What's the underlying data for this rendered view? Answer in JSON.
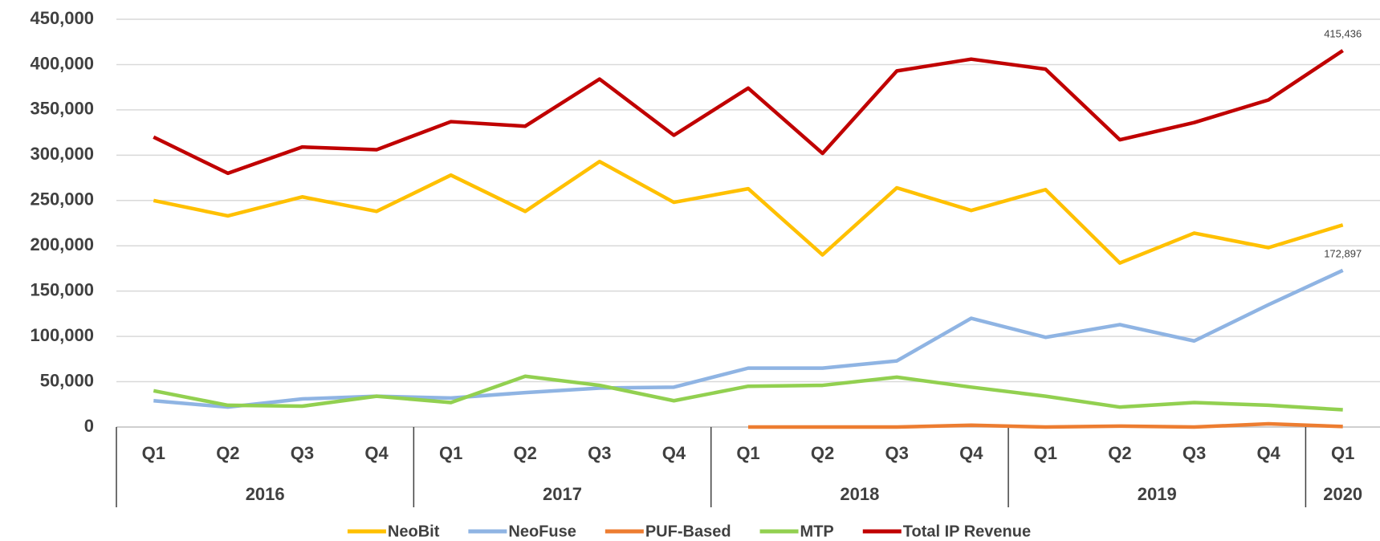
{
  "chart_data": {
    "type": "line",
    "groups": [
      {
        "label": "2016",
        "quarters": [
          "Q1",
          "Q2",
          "Q3",
          "Q4"
        ]
      },
      {
        "label": "2017",
        "quarters": [
          "Q1",
          "Q2",
          "Q3",
          "Q4"
        ]
      },
      {
        "label": "2018",
        "quarters": [
          "Q1",
          "Q2",
          "Q3",
          "Q4"
        ]
      },
      {
        "label": "2019",
        "quarters": [
          "Q1",
          "Q2",
          "Q3",
          "Q4"
        ]
      },
      {
        "label": "2020",
        "quarters": [
          "Q1"
        ]
      }
    ],
    "series": [
      {
        "name": "NeoBit",
        "color": "#FFC000",
        "values": [
          250000,
          233000,
          254000,
          238000,
          278000,
          238000,
          293000,
          248000,
          263000,
          190000,
          264000,
          239000,
          262000,
          181000,
          214000,
          198000,
          223000
        ]
      },
      {
        "name": "NeoFuse",
        "color": "#8FB4E3",
        "values": [
          29000,
          22000,
          31000,
          34000,
          32000,
          38000,
          43000,
          44000,
          65000,
          65000,
          73000,
          120000,
          99000,
          113000,
          95000,
          135000,
          172897
        ],
        "value_labels": [
          null,
          null,
          null,
          null,
          null,
          null,
          null,
          null,
          null,
          null,
          null,
          null,
          null,
          null,
          null,
          null,
          "172,897"
        ]
      },
      {
        "name": "PUF-Based",
        "color": "#ED7D31",
        "values": [
          null,
          null,
          null,
          null,
          null,
          null,
          null,
          null,
          0,
          0,
          0,
          2000,
          0,
          1000,
          0,
          3500,
          500
        ]
      },
      {
        "name": "MTP",
        "color": "#92D050",
        "values": [
          40000,
          24000,
          23000,
          34000,
          27000,
          56000,
          46000,
          29000,
          45000,
          46000,
          55000,
          44000,
          34000,
          22000,
          27000,
          24000,
          19000
        ]
      },
      {
        "name": "Total IP Revenue",
        "color": "#C00000",
        "values": [
          320000,
          280000,
          309000,
          306000,
          337000,
          332000,
          384000,
          322000,
          374000,
          302000,
          393000,
          406000,
          395000,
          317000,
          336000,
          361000,
          415436
        ],
        "value_labels": [
          null,
          null,
          null,
          null,
          null,
          null,
          null,
          null,
          null,
          null,
          null,
          null,
          null,
          null,
          null,
          null,
          "415,436"
        ]
      }
    ],
    "ylim": [
      0,
      450000
    ],
    "yticks": [
      0,
      {
        "value": 50000,
        "label": "50,000"
      },
      {
        "value": 100000,
        "label": "100,000"
      },
      {
        "value": 150000,
        "label": "150,000"
      },
      {
        "value": 200000,
        "label": "200,000"
      },
      {
        "value": 250000,
        "label": "250,000"
      },
      {
        "value": 300000,
        "label": "300,000"
      },
      {
        "value": 350000,
        "label": "350,000"
      },
      {
        "value": 400000,
        "label": "400,000"
      },
      {
        "value": 450000,
        "label": "450,000"
      }
    ],
    "grid": true
  }
}
